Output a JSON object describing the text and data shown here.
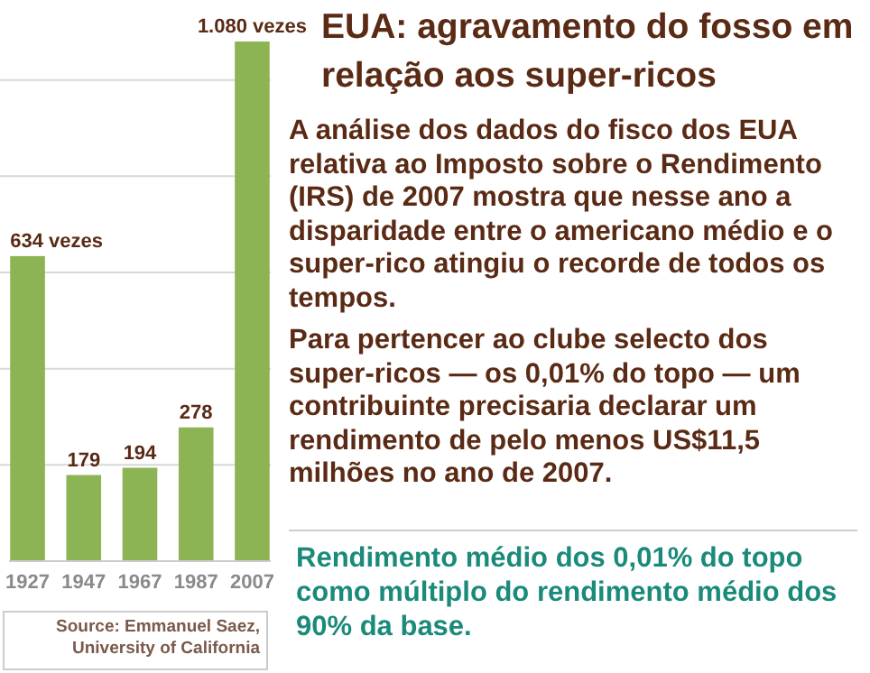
{
  "chart_data": {
    "type": "bar",
    "title": "EUA: agravamento do fosso em relação aos super-ricos",
    "subtitle": "Rendimento médio dos 0,01% do topo como múltiplo do rendimento médio dos 90% da base.",
    "categories": [
      "1927",
      "1947",
      "1967",
      "1987",
      "2007"
    ],
    "values": [
      634,
      179,
      194,
      278,
      1080
    ],
    "color": "#8cb454",
    "value_labels": [
      "634 vezes",
      "179",
      "194",
      "278",
      "1.080 vezes"
    ],
    "ylim": [
      0,
      1080
    ],
    "yticks": [
      {
        "value": 200,
        "label": null
      },
      {
        "value": 400,
        "label": null
      },
      {
        "value": 600,
        "label": null
      },
      {
        "value": 800,
        "label": null
      },
      {
        "value": 1000,
        "label": null
      }
    ],
    "grid": "y",
    "tick_labels": "x",
    "annotations": [
      "A análise dos dados do fisco dos EUA relativa ao Imposto sobre o Rendimento (IRS) de 2007 mostra que nesse ano a disparidade entre o americano médio e o super-rico atingiu o recorde de todos os tempos.",
      "Para pertencer ao clube selecto dos super-ricos — os 0,01% do topo — um contribuinte precisaria declarar um rendimento de pelo menos US$11,5 milhões no ano de 2007.",
      "Source: Emmanuel Saez, University of California"
    ]
  }
}
